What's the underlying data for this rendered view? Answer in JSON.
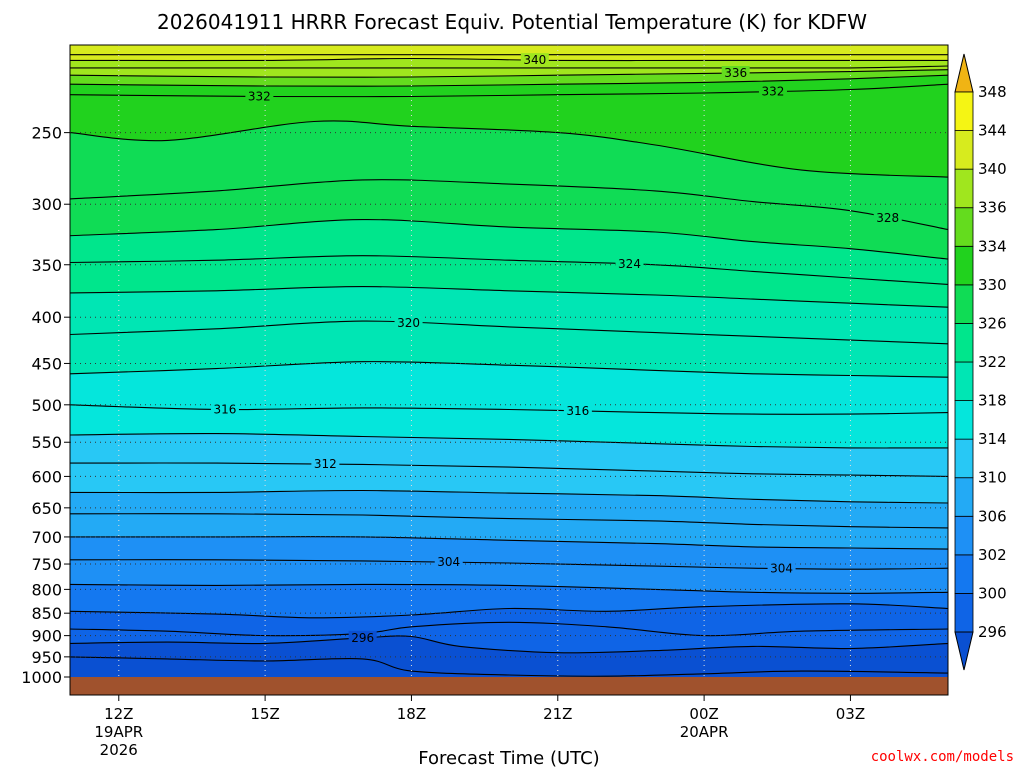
{
  "chart_data": {
    "type": "contour",
    "title": "2026041911 HRRR Forecast Equiv. Potential Temperature (K) for KDFW",
    "xlabel": "Forecast Time (UTC)",
    "ylabel": "",
    "x_ticks": [
      {
        "hour": 0,
        "label": "12Z",
        "sub": [
          "19APR",
          "2026"
        ]
      },
      {
        "hour": 3,
        "label": "15Z",
        "sub": []
      },
      {
        "hour": 6,
        "label": "18Z",
        "sub": []
      },
      {
        "hour": 9,
        "label": "21Z",
        "sub": []
      },
      {
        "hour": 12,
        "label": "00Z",
        "sub": [
          "20APR"
        ]
      },
      {
        "hour": 15,
        "label": "03Z",
        "sub": []
      }
    ],
    "x_range_hours": [
      -1,
      17
    ],
    "y_axis": "pressure (hPa), log scale, inverted",
    "y_range": [
      1000,
      200
    ],
    "y_ticks": [
      250,
      300,
      350,
      400,
      450,
      500,
      550,
      600,
      650,
      700,
      750,
      800,
      850,
      900,
      950,
      1000
    ],
    "grid": true,
    "colorbar": {
      "levels": [
        296,
        300,
        302,
        306,
        310,
        314,
        318,
        322,
        326,
        330,
        334,
        336,
        340,
        344,
        348
      ],
      "colors": [
        "#0a50d2",
        "#0f64e6",
        "#1478f0",
        "#1e90f5",
        "#23aaf5",
        "#28c8f5",
        "#05e6dc",
        "#00e6b4",
        "#00e68c",
        "#10dc55",
        "#21d21e",
        "#64dc1e",
        "#a0e61e",
        "#d7eb1e",
        "#f5f514",
        "#f5d214",
        "#f0b414"
      ]
    },
    "contour_interval_K": 2,
    "contour_labels": [
      {
        "value": 340,
        "hour": 14.5
      },
      {
        "value": 336,
        "hour": 21.5
      },
      {
        "value": 332,
        "hour": 4.9
      },
      {
        "value": 332,
        "hour": 22.8
      },
      {
        "value": 328,
        "hour": 26.8
      },
      {
        "value": 324,
        "hour": 17.8
      },
      {
        "value": 320,
        "hour": 10.1
      },
      {
        "value": 316,
        "hour": 3.7
      },
      {
        "value": 316,
        "hour": 16.0
      },
      {
        "value": 312,
        "hour": 7.2
      },
      {
        "value": 304,
        "hour": 11.5
      },
      {
        "value": 296,
        "hour": 8.5
      },
      {
        "value": 304,
        "hour": 23.1
      }
    ],
    "contours": [
      {
        "value": 342,
        "points": [
          [
            -1,
            205
          ],
          [
            3,
            205
          ],
          [
            6,
            205
          ],
          [
            9,
            205
          ],
          [
            12,
            205
          ],
          [
            15,
            205
          ],
          [
            17,
            205
          ]
        ]
      },
      {
        "value": 340,
        "points": [
          [
            -1,
            208
          ],
          [
            3,
            208
          ],
          [
            6,
            207
          ],
          [
            9,
            208
          ],
          [
            12,
            208
          ],
          [
            15,
            208
          ],
          [
            17,
            208
          ]
        ]
      },
      {
        "value": 338,
        "points": [
          [
            -1,
            212
          ],
          [
            3,
            212
          ],
          [
            6,
            212
          ],
          [
            9,
            212
          ],
          [
            12,
            212
          ],
          [
            15,
            212
          ],
          [
            17,
            211
          ]
        ]
      },
      {
        "value": 336,
        "points": [
          [
            -1,
            216
          ],
          [
            3,
            217
          ],
          [
            6,
            217
          ],
          [
            9,
            216
          ],
          [
            12,
            215
          ],
          [
            15,
            214
          ],
          [
            17,
            213
          ]
        ]
      },
      {
        "value": 334,
        "points": [
          [
            -1,
            221
          ],
          [
            3,
            222
          ],
          [
            6,
            222
          ],
          [
            9,
            221
          ],
          [
            12,
            220
          ],
          [
            15,
            218
          ],
          [
            17,
            216
          ]
        ]
      },
      {
        "value": 332,
        "points": [
          [
            -1,
            227
          ],
          [
            3,
            228
          ],
          [
            6,
            228
          ],
          [
            9,
            227
          ],
          [
            12,
            226
          ],
          [
            15,
            224
          ],
          [
            17,
            221
          ]
        ]
      },
      {
        "value": 330,
        "points": [
          [
            -1,
            250
          ],
          [
            1,
            255
          ],
          [
            4,
            243
          ],
          [
            6,
            246
          ],
          [
            9,
            250
          ],
          [
            11,
            258
          ],
          [
            14,
            275
          ],
          [
            17,
            280
          ]
        ]
      },
      {
        "value": 328,
        "points": [
          [
            -1,
            296
          ],
          [
            2,
            290
          ],
          [
            5,
            282
          ],
          [
            8,
            285
          ],
          [
            11,
            290
          ],
          [
            13,
            298
          ],
          [
            15,
            305
          ],
          [
            17,
            320
          ]
        ]
      },
      {
        "value": 326,
        "points": [
          [
            -1,
            325
          ],
          [
            2,
            320
          ],
          [
            5,
            312
          ],
          [
            8,
            318
          ],
          [
            11,
            322
          ],
          [
            13,
            330
          ],
          [
            15,
            336
          ],
          [
            17,
            345
          ]
        ]
      },
      {
        "value": 324,
        "points": [
          [
            -1,
            348
          ],
          [
            2,
            346
          ],
          [
            5,
            342
          ],
          [
            8,
            346
          ],
          [
            11,
            350
          ],
          [
            13,
            356
          ],
          [
            15,
            362
          ],
          [
            17,
            368
          ]
        ]
      },
      {
        "value": 322,
        "points": [
          [
            -1,
            376
          ],
          [
            2,
            374
          ],
          [
            5,
            370
          ],
          [
            8,
            374
          ],
          [
            11,
            378
          ],
          [
            13,
            382
          ],
          [
            15,
            386
          ],
          [
            17,
            390
          ]
        ]
      },
      {
        "value": 320,
        "points": [
          [
            -1,
            418
          ],
          [
            2,
            412
          ],
          [
            5,
            404
          ],
          [
            8,
            410
          ],
          [
            11,
            416
          ],
          [
            13,
            420
          ],
          [
            15,
            424
          ],
          [
            17,
            428
          ]
        ]
      },
      {
        "value": 318,
        "points": [
          [
            -1,
            462
          ],
          [
            2,
            456
          ],
          [
            5,
            448
          ],
          [
            8,
            452
          ],
          [
            11,
            458
          ],
          [
            13,
            462
          ],
          [
            15,
            464
          ],
          [
            17,
            466
          ]
        ]
      },
      {
        "value": 316,
        "points": [
          [
            -1,
            500
          ],
          [
            2,
            506
          ],
          [
            5,
            504
          ],
          [
            8,
            506
          ],
          [
            11,
            510
          ],
          [
            13,
            512
          ],
          [
            15,
            512
          ],
          [
            17,
            510
          ]
        ]
      },
      {
        "value": 314,
        "points": [
          [
            -1,
            540
          ],
          [
            2,
            538
          ],
          [
            5,
            542
          ],
          [
            8,
            546
          ],
          [
            11,
            552
          ],
          [
            13,
            556
          ],
          [
            15,
            558
          ],
          [
            17,
            558
          ]
        ]
      },
      {
        "value": 312,
        "points": [
          [
            -1,
            580
          ],
          [
            2,
            580
          ],
          [
            5,
            582
          ],
          [
            8,
            586
          ],
          [
            11,
            592
          ],
          [
            13,
            596
          ],
          [
            15,
            598
          ],
          [
            17,
            600
          ]
        ]
      },
      {
        "value": 310,
        "points": [
          [
            -1,
            625
          ],
          [
            2,
            625
          ],
          [
            5,
            622
          ],
          [
            8,
            626
          ],
          [
            11,
            630
          ],
          [
            13,
            636
          ],
          [
            15,
            640
          ],
          [
            17,
            642
          ]
        ]
      },
      {
        "value": 308,
        "points": [
          [
            -1,
            660
          ],
          [
            2,
            660
          ],
          [
            5,
            662
          ],
          [
            8,
            668
          ],
          [
            11,
            672
          ],
          [
            13,
            678
          ],
          [
            15,
            682
          ],
          [
            17,
            684
          ]
        ]
      },
      {
        "value": 306,
        "points": [
          [
            -1,
            700
          ],
          [
            2,
            700
          ],
          [
            5,
            700
          ],
          [
            8,
            706
          ],
          [
            11,
            712
          ],
          [
            13,
            718
          ],
          [
            15,
            720
          ],
          [
            17,
            722
          ]
        ]
      },
      {
        "value": 304,
        "points": [
          [
            -1,
            742
          ],
          [
            2,
            742
          ],
          [
            5,
            744
          ],
          [
            8,
            748
          ],
          [
            11,
            754
          ],
          [
            13,
            758
          ],
          [
            15,
            760
          ],
          [
            17,
            758
          ]
        ]
      },
      {
        "value": 302,
        "points": [
          [
            -1,
            790
          ],
          [
            2,
            792
          ],
          [
            5,
            790
          ],
          [
            8,
            792
          ],
          [
            11,
            800
          ],
          [
            13,
            806
          ],
          [
            15,
            808
          ],
          [
            17,
            806
          ]
        ]
      },
      {
        "value": 300,
        "points": [
          [
            -1,
            846
          ],
          [
            2,
            852
          ],
          [
            4,
            860
          ],
          [
            6,
            854
          ],
          [
            8,
            840
          ],
          [
            10,
            846
          ],
          [
            12,
            836
          ],
          [
            15,
            830
          ],
          [
            17,
            840
          ]
        ]
      },
      {
        "value": 298,
        "points": [
          [
            -1,
            885
          ],
          [
            1,
            890
          ],
          [
            3,
            900
          ],
          [
            5,
            895
          ],
          [
            6,
            880
          ],
          [
            8,
            870
          ],
          [
            10,
            880
          ],
          [
            12,
            900
          ],
          [
            14,
            890
          ],
          [
            17,
            885
          ]
        ]
      },
      {
        "value": 296,
        "points": [
          [
            -1,
            918
          ],
          [
            1,
            915
          ],
          [
            3,
            918
          ],
          [
            5,
            905
          ],
          [
            6,
            902
          ],
          [
            7,
            925
          ],
          [
            9,
            940
          ],
          [
            11,
            935
          ],
          [
            13,
            925
          ],
          [
            15,
            930
          ],
          [
            17,
            918
          ]
        ]
      },
      {
        "value": 294,
        "points": [
          [
            -1,
            950
          ],
          [
            1,
            955
          ],
          [
            3,
            960
          ],
          [
            5,
            955
          ],
          [
            6,
            985
          ],
          [
            8,
            995
          ],
          [
            10,
            998
          ],
          [
            12,
            992
          ],
          [
            14,
            985
          ],
          [
            17,
            990
          ]
        ]
      }
    ],
    "terrain": "ground below 1000 hPa"
  },
  "credit": "coolwx.com/models"
}
